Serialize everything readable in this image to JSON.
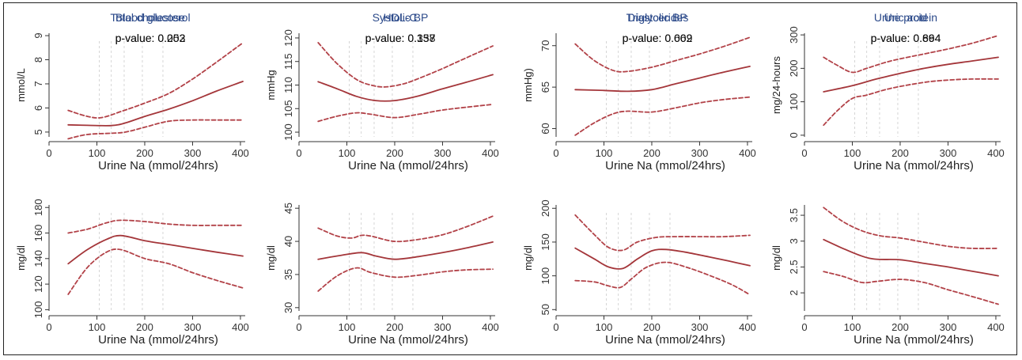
{
  "colors": {
    "fit": "#a4363a",
    "ci": "#b24248",
    "title": "#2c4a8a",
    "ref_lines": "#d6d6d6"
  },
  "chart_data": [
    {
      "type": "line",
      "title": "Blood glucose",
      "annotation": "p-value: 0.253",
      "xlabel": "Urine Na (mmol/24hrs)",
      "ylabel": "mmol/L",
      "xlim": [
        0,
        410
      ],
      "ylim": [
        4.8,
        9.1
      ],
      "xticks": [
        0,
        100,
        200,
        300,
        400
      ],
      "yticks": [
        5,
        6,
        7,
        8,
        9
      ],
      "ref_x": [
        105,
        130,
        157,
        195,
        238
      ],
      "series": [
        {
          "role": "fit",
          "x": [
            40,
            80,
            130,
            160,
            200,
            250,
            300,
            350,
            405
          ],
          "y": [
            5.3,
            5.28,
            5.27,
            5.38,
            5.65,
            5.95,
            6.3,
            6.7,
            7.1
          ]
        },
        {
          "role": "ci_upper",
          "x": [
            40,
            80,
            110,
            150,
            200,
            250,
            300,
            350,
            405
          ],
          "y": [
            5.9,
            5.65,
            5.6,
            5.85,
            6.2,
            6.6,
            7.2,
            7.9,
            8.7
          ]
        },
        {
          "role": "ci_lower",
          "x": [
            40,
            80,
            130,
            160,
            200,
            250,
            300,
            350,
            405
          ],
          "y": [
            4.72,
            4.9,
            4.95,
            5.0,
            5.2,
            5.45,
            5.5,
            5.5,
            5.5
          ]
        }
      ]
    },
    {
      "type": "line",
      "title": "Systolic BP",
      "annotation": "p-value: 0.137",
      "xlabel": "Urine Na (mmol/24hrs)",
      "ylabel": "mmHg",
      "xlim": [
        0,
        410
      ],
      "ylim": [
        99,
        121
      ],
      "xticks": [
        0,
        100,
        200,
        300,
        400
      ],
      "yticks": [
        100,
        105,
        110,
        115,
        120
      ],
      "ref_x": [
        105,
        130,
        157,
        195,
        238
      ],
      "series": [
        {
          "role": "fit",
          "x": [
            40,
            80,
            120,
            160,
            200,
            250,
            300,
            350,
            405
          ],
          "y": [
            110.7,
            109.2,
            107.6,
            106.7,
            106.7,
            107.7,
            109.2,
            110.6,
            112.2
          ]
        },
        {
          "role": "ci_upper",
          "x": [
            40,
            80,
            120,
            150,
            180,
            220,
            260,
            300,
            350,
            405
          ],
          "y": [
            119,
            114.5,
            111.2,
            110.0,
            109.6,
            110.3,
            111.8,
            113.5,
            115.8,
            118.3
          ]
        },
        {
          "role": "ci_lower",
          "x": [
            40,
            80,
            120,
            150,
            200,
            250,
            300,
            350,
            405
          ],
          "y": [
            102.3,
            103.4,
            104.1,
            103.8,
            103.1,
            103.8,
            104.7,
            105.3,
            105.9
          ]
        }
      ]
    },
    {
      "type": "line",
      "title": "Diastolic BP",
      "annotation": "p-value: 0.609",
      "xlabel": "Urine Na (mmol/24hrs)",
      "ylabel": "mmHg)",
      "xlim": [
        0,
        410
      ],
      "ylim": [
        59,
        71.5
      ],
      "xticks": [
        0,
        100,
        200,
        300,
        400
      ],
      "yticks": [
        60,
        65,
        70
      ],
      "ref_x": [
        105,
        130,
        157,
        195,
        238
      ],
      "series": [
        {
          "role": "fit",
          "x": [
            40,
            100,
            150,
            200,
            250,
            300,
            350,
            405
          ],
          "y": [
            64.7,
            64.6,
            64.5,
            64.7,
            65.4,
            66.1,
            66.8,
            67.5
          ]
        },
        {
          "role": "ci_upper",
          "x": [
            40,
            80,
            120,
            150,
            200,
            250,
            300,
            350,
            405
          ],
          "y": [
            70.2,
            68.2,
            67.0,
            66.9,
            67.4,
            68.2,
            69.0,
            69.9,
            71.0
          ]
        },
        {
          "role": "ci_lower",
          "x": [
            40,
            80,
            120,
            150,
            200,
            250,
            300,
            350,
            405
          ],
          "y": [
            59.2,
            60.7,
            61.8,
            62.1,
            62.0,
            62.5,
            63.1,
            63.5,
            63.8
          ]
        }
      ]
    },
    {
      "type": "line",
      "title": "Urine protein",
      "annotation": "p-value: 0.894",
      "xlabel": "Urine Na (mmol/24hrs)",
      "ylabel": "mg/24-hours",
      "xlim": [
        0,
        410
      ],
      "ylim": [
        -5,
        305
      ],
      "xticks": [
        0,
        100,
        200,
        300,
        400
      ],
      "yticks": [
        0,
        100,
        200,
        300
      ],
      "ref_x": [
        105,
        130,
        157,
        195,
        238
      ],
      "series": [
        {
          "role": "fit",
          "x": [
            40,
            100,
            150,
            200,
            250,
            300,
            350,
            405
          ],
          "y": [
            130,
            148,
            168,
            185,
            200,
            212,
            222,
            233
          ]
        },
        {
          "role": "ci_upper",
          "x": [
            40,
            70,
            100,
            130,
            180,
            250,
            300,
            350,
            405
          ],
          "y": [
            233,
            208,
            188,
            200,
            222,
            243,
            258,
            275,
            298
          ]
        },
        {
          "role": "ci_lower",
          "x": [
            40,
            70,
            100,
            130,
            180,
            250,
            300,
            350,
            405
          ],
          "y": [
            30,
            75,
            110,
            120,
            140,
            158,
            165,
            168,
            168
          ]
        }
      ]
    },
    {
      "type": "line",
      "title": "Total cholesterol",
      "annotation": "p-value: 0.002",
      "xlabel": "Urine Na (mmol/24hrs)",
      "ylabel": "mg/dl",
      "xlim": [
        0,
        410
      ],
      "ylim": [
        99,
        182
      ],
      "xticks": [
        0,
        100,
        200,
        300,
        400
      ],
      "yticks": [
        100,
        120,
        140,
        160,
        180
      ],
      "ref_x": [
        105,
        130,
        157,
        195,
        238
      ],
      "series": [
        {
          "role": "fit",
          "x": [
            40,
            80,
            120,
            150,
            200,
            250,
            300,
            350,
            405
          ],
          "y": [
            136,
            147,
            155,
            158,
            154,
            151,
            148,
            145,
            142
          ]
        },
        {
          "role": "ci_upper",
          "x": [
            40,
            80,
            120,
            150,
            200,
            250,
            300,
            350,
            405
          ],
          "y": [
            160,
            163,
            168,
            170,
            169,
            167,
            166,
            166,
            166
          ]
        },
        {
          "role": "ci_lower",
          "x": [
            40,
            80,
            120,
            150,
            200,
            250,
            300,
            350,
            405
          ],
          "y": [
            112,
            133,
            145,
            147,
            140,
            136,
            129,
            123,
            117
          ]
        }
      ]
    },
    {
      "type": "line",
      "title": "HDL-C",
      "annotation": "p-value: 0.358",
      "xlabel": "Urine Na (mmol/24hrs)",
      "ylabel": "mg/dl",
      "xlim": [
        0,
        410
      ],
      "ylim": [
        29.5,
        45.5
      ],
      "xticks": [
        0,
        100,
        200,
        300,
        400
      ],
      "yticks": [
        30,
        35,
        40,
        45
      ],
      "ref_x": [
        105,
        130,
        157,
        195,
        238
      ],
      "series": [
        {
          "role": "fit",
          "x": [
            40,
            80,
            130,
            160,
            200,
            250,
            300,
            350,
            405
          ],
          "y": [
            37.3,
            37.8,
            38.3,
            37.8,
            37.3,
            37.7,
            38.3,
            39.0,
            39.9
          ]
        },
        {
          "role": "ci_upper",
          "x": [
            40,
            80,
            110,
            130,
            150,
            200,
            250,
            300,
            350,
            405
          ],
          "y": [
            42.0,
            40.8,
            40.5,
            40.9,
            40.8,
            40.0,
            40.3,
            41.0,
            42.2,
            43.8
          ]
        },
        {
          "role": "ci_lower",
          "x": [
            40,
            80,
            120,
            150,
            200,
            250,
            300,
            350,
            405
          ],
          "y": [
            32.5,
            34.8,
            36.0,
            35.3,
            34.6,
            34.9,
            35.4,
            35.7,
            35.8
          ]
        }
      ]
    },
    {
      "type": "line",
      "title": "Triglycerides",
      "annotation": "p-value: 0.062",
      "xlabel": "Urine Na (mmol/24hrs)",
      "ylabel": "mg/dl",
      "xlim": [
        0,
        410
      ],
      "ylim": [
        48,
        205
      ],
      "xticks": [
        0,
        100,
        200,
        300,
        400
      ],
      "yticks": [
        50,
        100,
        150,
        200
      ],
      "ref_x": [
        105,
        130,
        157,
        195,
        238
      ],
      "series": [
        {
          "role": "fit",
          "x": [
            40,
            80,
            110,
            140,
            170,
            200,
            230,
            270,
            320,
            360,
            405
          ],
          "y": [
            141,
            125,
            113,
            111,
            125,
            137,
            139,
            135,
            128,
            122,
            115
          ]
        },
        {
          "role": "ci_upper",
          "x": [
            40,
            80,
            110,
            140,
            170,
            210,
            250,
            300,
            350,
            405
          ],
          "y": [
            190,
            161,
            142,
            138,
            150,
            157,
            158,
            158,
            158,
            160
          ]
        },
        {
          "role": "ci_lower",
          "x": [
            40,
            80,
            110,
            135,
            160,
            190,
            230,
            280,
            330,
            370,
            405
          ],
          "y": [
            93,
            91,
            85,
            83,
            97,
            113,
            120,
            111,
            98,
            86,
            72
          ]
        }
      ]
    },
    {
      "type": "line",
      "title": "Uric acid",
      "annotation": "p-value: 0.664",
      "xlabel": "Urine Na (mmol/24hrs)",
      "ylabel": "mg/dl",
      "xlim": [
        0,
        410
      ],
      "ylim": [
        1.65,
        3.7
      ],
      "xticks": [
        0,
        100,
        200,
        300,
        400
      ],
      "yticks": [
        2,
        2.5,
        3,
        3.5
      ],
      "ref_x": [
        105,
        130,
        157,
        195,
        238
      ],
      "series": [
        {
          "role": "fit",
          "x": [
            40,
            80,
            120,
            150,
            200,
            250,
            300,
            350,
            405
          ],
          "y": [
            3.03,
            2.86,
            2.71,
            2.65,
            2.64,
            2.57,
            2.5,
            2.42,
            2.33
          ]
        },
        {
          "role": "ci_upper",
          "x": [
            40,
            80,
            120,
            160,
            200,
            250,
            300,
            350,
            405
          ],
          "y": [
            3.65,
            3.38,
            3.2,
            3.1,
            3.06,
            2.98,
            2.9,
            2.86,
            2.86
          ]
        },
        {
          "role": "ci_lower",
          "x": [
            40,
            80,
            120,
            150,
            200,
            250,
            300,
            350,
            405
          ],
          "y": [
            2.41,
            2.32,
            2.2,
            2.22,
            2.26,
            2.2,
            2.06,
            1.93,
            1.78
          ]
        }
      ]
    }
  ]
}
